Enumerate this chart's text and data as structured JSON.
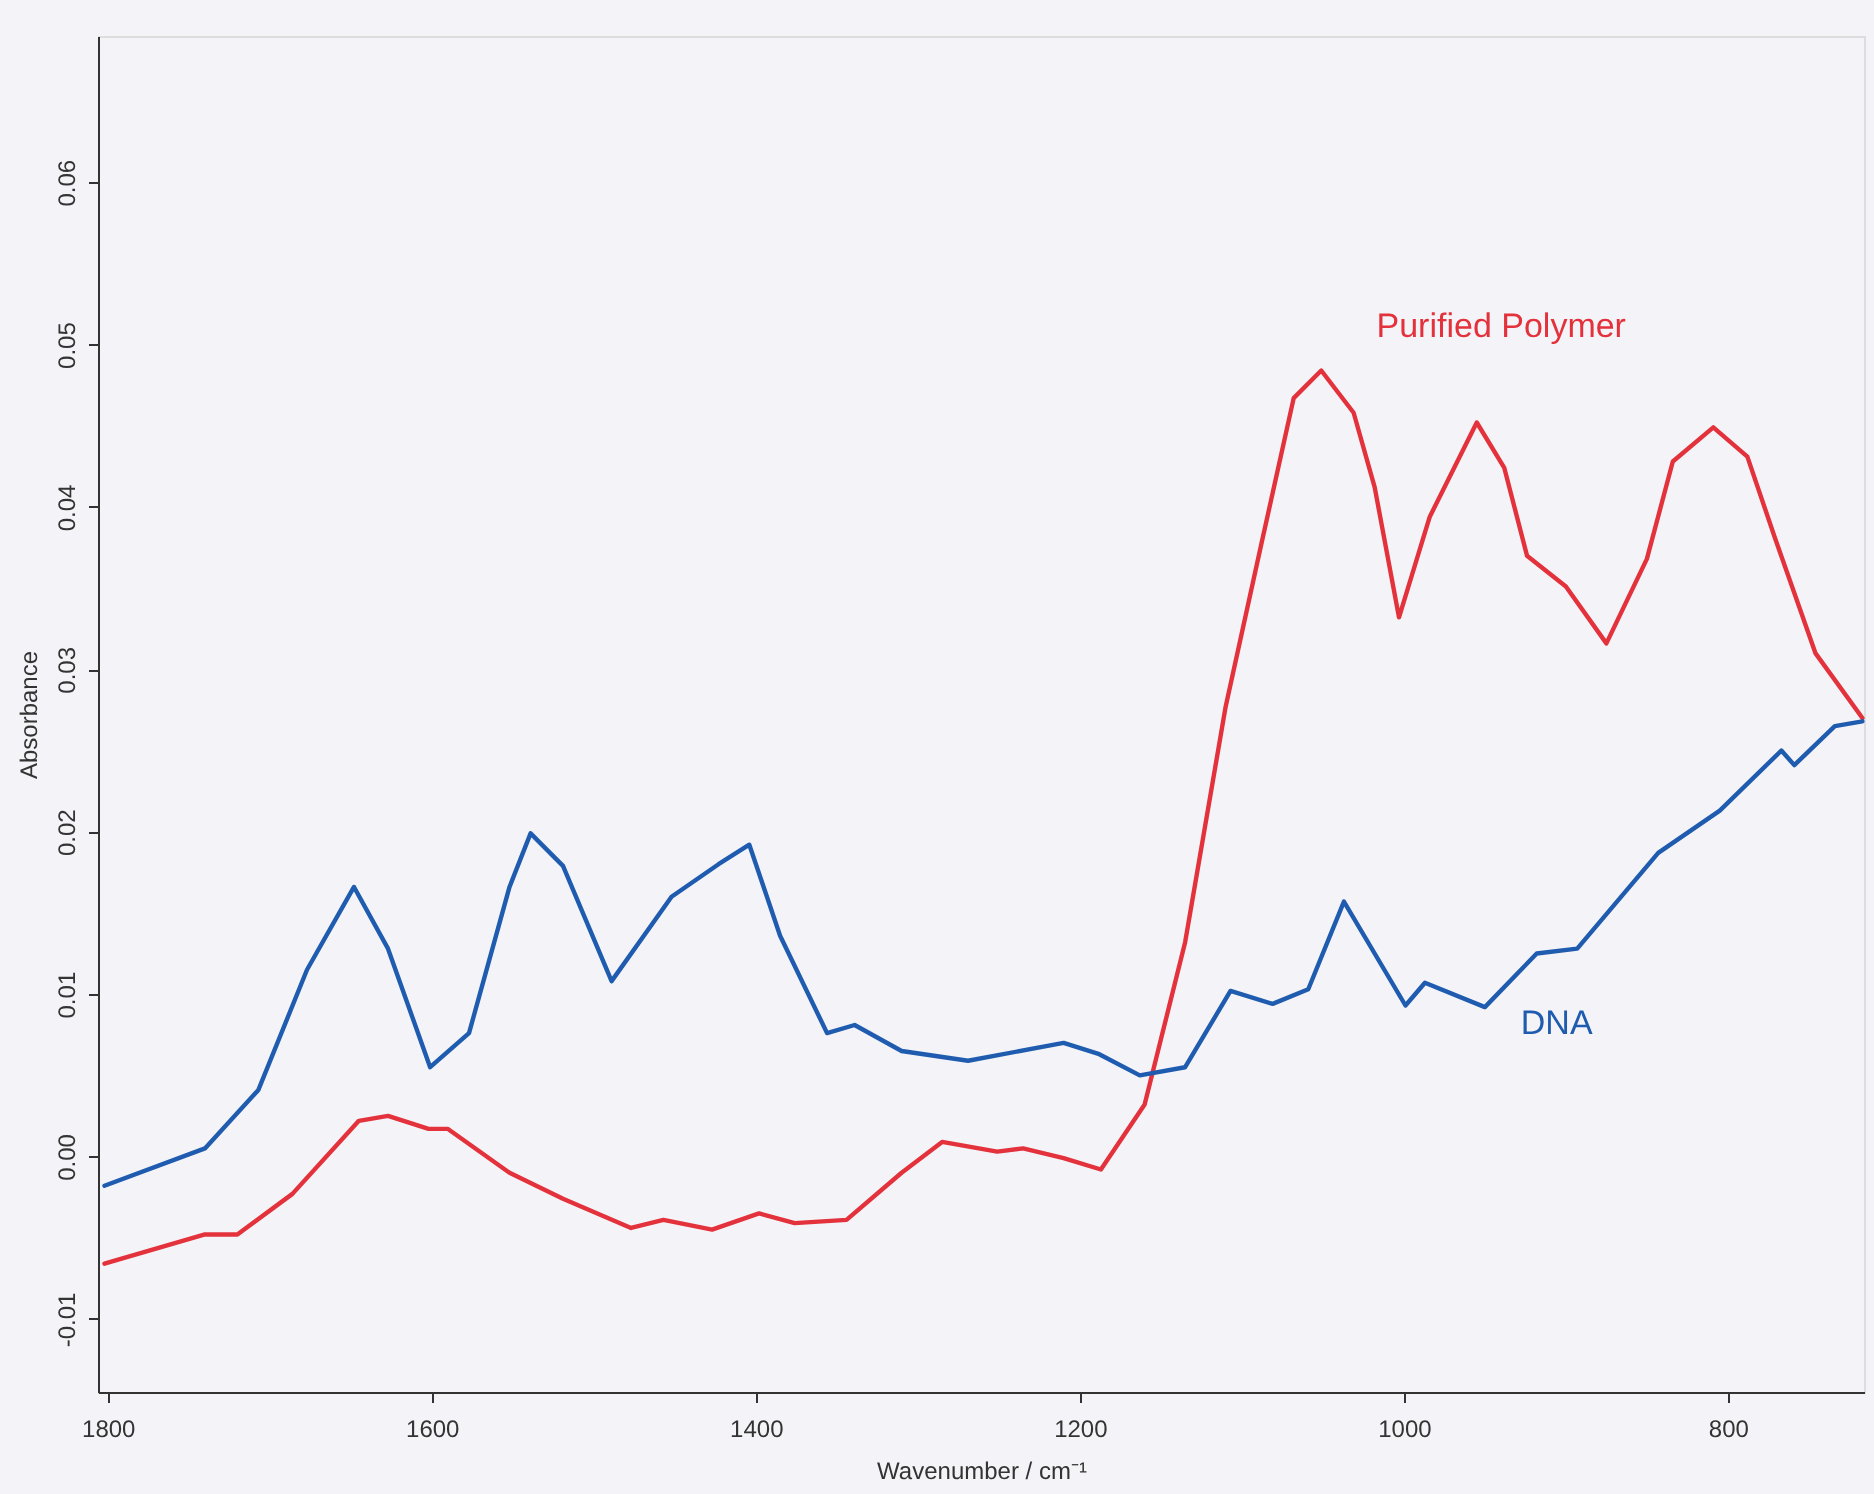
{
  "chart_data": {
    "type": "line",
    "xlabel": "Wavenumber / cm⁻¹",
    "ylabel": "Absorbance",
    "xlim": [
      1806,
      716
    ],
    "ylim": [
      -0.0145,
      0.069
    ],
    "xticks": [
      1800,
      1600,
      1400,
      1200,
      1000,
      800
    ],
    "yticks": [
      {
        "value": -0.01,
        "label": "-0.01"
      },
      {
        "value": 0,
        "label": "0.00"
      },
      {
        "value": 0.01,
        "label": "0.01"
      },
      {
        "value": 0.02,
        "label": "0.02"
      },
      {
        "value": 0.03,
        "label": "0.03"
      },
      {
        "value": 0.04,
        "label": "0.04"
      },
      {
        "value": 0.05,
        "label": "0.05"
      },
      {
        "value": 0.06,
        "label": "0.06"
      }
    ],
    "grid": false,
    "marker": "none",
    "line_style": "solid",
    "series": [
      {
        "name": "Purified Polymer",
        "color": "#e3323c",
        "x": [
          1802,
          1740,
          1720,
          1686,
          1645,
          1627,
          1602,
          1590,
          1552,
          1519,
          1477,
          1457,
          1427,
          1398,
          1376,
          1344,
          1310,
          1285,
          1251,
          1235,
          1210,
          1187,
          1160,
          1135,
          1110,
          1088,
          1068,
          1051,
          1031,
          1018,
          1003,
          984,
          955,
          938,
          924,
          900,
          875,
          850,
          834,
          809,
          788,
          771,
          746,
          717
        ],
        "values": [
          -0.0066,
          -0.0048,
          -0.0048,
          -0.0023,
          0.0022,
          0.0025,
          0.0017,
          0.0017,
          -0.001,
          -0.0026,
          -0.0044,
          -0.0039,
          -0.0045,
          -0.0035,
          -0.0041,
          -0.0039,
          -0.001,
          0.0009,
          0.0003,
          0.0005,
          -0.0001,
          -0.0008,
          0.0032,
          0.0132,
          0.0277,
          0.0377,
          0.0467,
          0.0484,
          0.0458,
          0.0412,
          0.0332,
          0.0394,
          0.0452,
          0.0424,
          0.037,
          0.0351,
          0.0316,
          0.0368,
          0.0428,
          0.0449,
          0.0431,
          0.0381,
          0.031,
          0.027
        ]
      },
      {
        "name": "DNA",
        "color": "#1f5caf",
        "x": [
          1802,
          1740,
          1707,
          1677,
          1648,
          1627,
          1601,
          1577,
          1552,
          1539,
          1519,
          1489,
          1452,
          1423,
          1404,
          1385,
          1356,
          1339,
          1310,
          1269,
          1210,
          1188,
          1163,
          1135,
          1107,
          1081,
          1059,
          1037,
          999,
          987,
          950,
          918,
          893,
          843,
          805,
          767,
          759,
          734,
          717
        ],
        "values": [
          -0.0018,
          0.0005,
          0.0041,
          0.0115,
          0.0166,
          0.0128,
          0.0055,
          0.0076,
          0.0166,
          0.0199,
          0.0179,
          0.0108,
          0.016,
          0.018,
          0.0192,
          0.0136,
          0.0076,
          0.0081,
          0.0065,
          0.0059,
          0.007,
          0.0063,
          0.005,
          0.0055,
          0.0102,
          0.0094,
          0.0103,
          0.0157,
          0.0093,
          0.0107,
          0.0092,
          0.0125,
          0.0128,
          0.0187,
          0.0213,
          0.025,
          0.0241,
          0.0265,
          0.0268
        ]
      }
    ]
  }
}
